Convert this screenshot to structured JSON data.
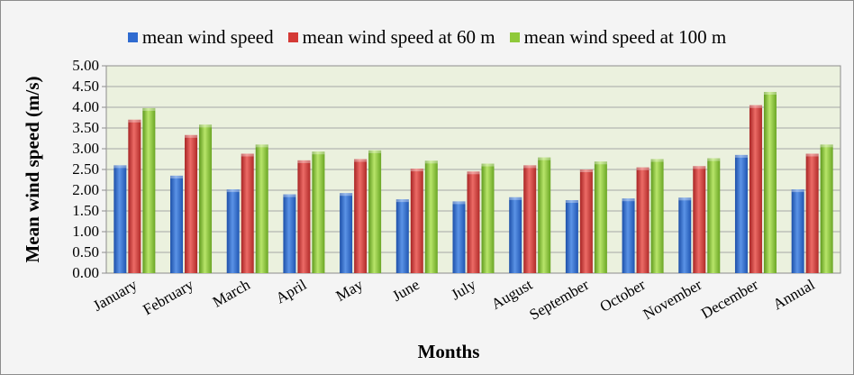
{
  "chart_data": {
    "type": "bar",
    "title": "",
    "xlabel": "Months",
    "ylabel": "Mean wind speed (m/s)",
    "ylim": [
      0,
      5
    ],
    "yticks": [
      "0.00",
      "0.50",
      "1.00",
      "1.50",
      "2.00",
      "2.50",
      "3.00",
      "3.50",
      "4.00",
      "4.50",
      "5.00"
    ],
    "grid": true,
    "legend_position": "top",
    "categories": [
      "January",
      "February",
      "March",
      "April",
      "May",
      "June",
      "July",
      "August",
      "September",
      "October",
      "November",
      "December",
      "Annual"
    ],
    "series": [
      {
        "name": "mean wind speed",
        "color": "#2f6bd0",
        "values": [
          2.6,
          2.35,
          2.02,
          1.9,
          1.93,
          1.78,
          1.73,
          1.83,
          1.76,
          1.8,
          1.82,
          2.85,
          2.02
        ]
      },
      {
        "name": "mean wind speed at 60 m",
        "color": "#d43a36",
        "values": [
          3.7,
          3.33,
          2.88,
          2.72,
          2.75,
          2.52,
          2.45,
          2.6,
          2.5,
          2.55,
          2.58,
          4.05,
          2.88
        ]
      },
      {
        "name": "mean wind speed at 100 m",
        "color": "#8fc93a",
        "values": [
          3.98,
          3.58,
          3.1,
          2.93,
          2.96,
          2.71,
          2.64,
          2.79,
          2.69,
          2.75,
          2.77,
          4.37,
          3.1
        ]
      }
    ]
  }
}
